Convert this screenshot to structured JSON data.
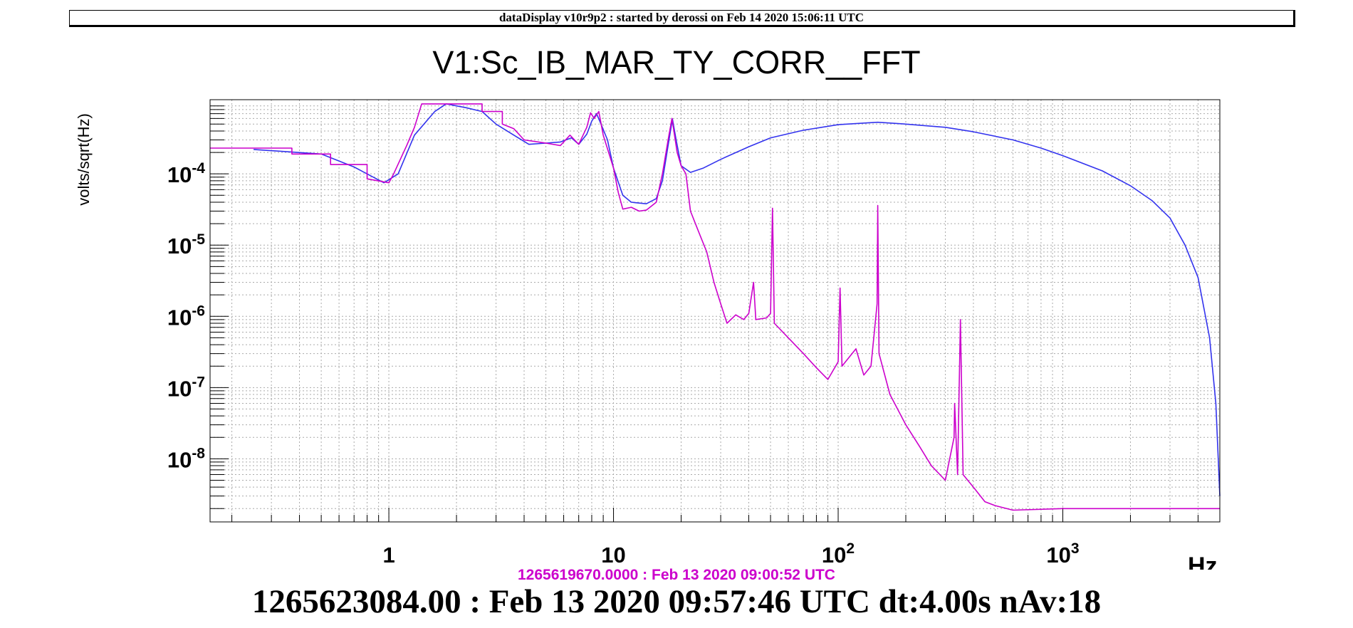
{
  "banner": "dataDisplay v10r9p2 : started by derossi on Feb 14 2020 15:06:11 UTC",
  "chart_data": {
    "type": "line",
    "title": "V1:Sc_IB_MAR_TY_CORR__FFT",
    "xlabel": "Hz",
    "ylabel": "volts/sqrt(Hz)",
    "xscale": "log",
    "yscale": "log",
    "xlim": [
      0.16,
      5000
    ],
    "ylim": [
      1.3e-09,
      0.0011
    ],
    "grid": true,
    "x_tick_labels": [
      {
        "value": 1,
        "base": "1",
        "exp": ""
      },
      {
        "value": 10,
        "base": "10",
        "exp": ""
      },
      {
        "value": 100,
        "base": "10",
        "exp": "2"
      },
      {
        "value": 1000,
        "base": "10",
        "exp": "3"
      }
    ],
    "y_tick_labels": [
      {
        "value": 0.0001,
        "base": "10",
        "exp": "-4"
      },
      {
        "value": 1e-05,
        "base": "10",
        "exp": "-5"
      },
      {
        "value": 1e-06,
        "base": "10",
        "exp": "-6"
      },
      {
        "value": 1e-07,
        "base": "10",
        "exp": "-7"
      },
      {
        "value": 1e-08,
        "base": "10",
        "exp": "-8"
      }
    ],
    "series": [
      {
        "color": "#3333ee",
        "points": [
          [
            0.25,
            0.00022
          ],
          [
            0.5,
            0.00019
          ],
          [
            0.7,
            0.000125
          ],
          [
            0.95,
            7.5e-05
          ],
          [
            1.1,
            0.0001
          ],
          [
            1.3,
            0.00035
          ],
          [
            1.6,
            0.00075
          ],
          [
            1.8,
            0.00096
          ],
          [
            2.2,
            0.00085
          ],
          [
            2.6,
            0.00075
          ],
          [
            3.0,
            0.0005
          ],
          [
            3.6,
            0.00035
          ],
          [
            4.2,
            0.00026
          ],
          [
            5.0,
            0.00027
          ],
          [
            5.8,
            0.00028
          ],
          [
            6.5,
            0.00032
          ],
          [
            7.0,
            0.00026
          ],
          [
            7.6,
            0.00036
          ],
          [
            8.0,
            0.00055
          ],
          [
            8.4,
            0.0007
          ],
          [
            8.8,
            0.0005
          ],
          [
            9.4,
            0.0003
          ],
          [
            10,
            0.00012
          ],
          [
            11,
            5e-05
          ],
          [
            12,
            4e-05
          ],
          [
            14,
            3.8e-05
          ],
          [
            15.5,
            4.5e-05
          ],
          [
            16.5,
            8e-05
          ],
          [
            17.5,
            0.00025
          ],
          [
            18.3,
            0.00059
          ],
          [
            19,
            0.0003
          ],
          [
            20,
            0.00013
          ],
          [
            22,
            0.000105
          ],
          [
            25,
            0.00012
          ],
          [
            30,
            0.00016
          ],
          [
            40,
            0.00024
          ],
          [
            50,
            0.00032
          ],
          [
            70,
            0.00041
          ],
          [
            100,
            0.00049
          ],
          [
            150,
            0.00053
          ],
          [
            200,
            0.0005
          ],
          [
            300,
            0.00045
          ],
          [
            400,
            0.00039
          ],
          [
            600,
            0.0003
          ],
          [
            800,
            0.00023
          ],
          [
            1000,
            0.00018
          ],
          [
            1500,
            0.00011
          ],
          [
            2000,
            6.8e-05
          ],
          [
            2500,
            4.2e-05
          ],
          [
            3000,
            2.4e-05
          ],
          [
            3500,
            1e-05
          ],
          [
            4000,
            3.5e-06
          ],
          [
            4500,
            5e-07
          ],
          [
            4800,
            6e-08
          ],
          [
            5000,
            3e-09
          ]
        ]
      },
      {
        "color": "#cc00cc",
        "points": [
          [
            0.16,
            0.00023
          ],
          [
            0.37,
            0.00023
          ],
          [
            0.37,
            0.00019
          ],
          [
            0.55,
            0.00019
          ],
          [
            0.55,
            0.000135
          ],
          [
            0.8,
            0.000135
          ],
          [
            0.8,
            8.5e-05
          ],
          [
            1.0,
            7.5e-05
          ],
          [
            1.05,
            0.0001
          ],
          [
            1.2,
            0.00025
          ],
          [
            1.3,
            0.00045
          ],
          [
            1.4,
            0.00096
          ],
          [
            2.6,
            0.00096
          ],
          [
            2.6,
            0.00075
          ],
          [
            3.2,
            0.00075
          ],
          [
            3.2,
            0.0005
          ],
          [
            3.6,
            0.00043
          ],
          [
            4.0,
            0.0003
          ],
          [
            5.0,
            0.00027
          ],
          [
            5.8,
            0.00025
          ],
          [
            6.4,
            0.00035
          ],
          [
            7.0,
            0.00026
          ],
          [
            7.6,
            0.00045
          ],
          [
            7.9,
            0.00072
          ],
          [
            8.2,
            0.0006
          ],
          [
            8.6,
            0.00075
          ],
          [
            9.0,
            0.00035
          ],
          [
            10,
            0.00012
          ],
          [
            10.5,
            5.5e-05
          ],
          [
            11,
            3.2e-05
          ],
          [
            12,
            3.4e-05
          ],
          [
            13,
            3e-05
          ],
          [
            14,
            3.1e-05
          ],
          [
            15.5,
            4e-05
          ],
          [
            16.5,
            0.0001
          ],
          [
            17.5,
            0.0003
          ],
          [
            18.2,
            0.0006
          ],
          [
            19.2,
            0.0002
          ],
          [
            20,
            0.00013
          ],
          [
            21,
            0.0001
          ],
          [
            22,
            3e-05
          ],
          [
            24,
            1.5e-05
          ],
          [
            26,
            8e-06
          ],
          [
            28,
            3e-06
          ],
          [
            30,
            1.5e-06
          ],
          [
            32,
            8e-07
          ],
          [
            35,
            1.05e-06
          ],
          [
            38,
            9e-07
          ],
          [
            40,
            1.1e-06
          ],
          [
            42,
            3e-06
          ],
          [
            43,
            9e-07
          ],
          [
            48,
            9.5e-07
          ],
          [
            50,
            1.1e-06
          ],
          [
            51,
            3.3e-05
          ],
          [
            52,
            8e-07
          ],
          [
            60,
            5e-07
          ],
          [
            70,
            3e-07
          ],
          [
            80,
            1.9e-07
          ],
          [
            90,
            1.3e-07
          ],
          [
            100,
            2.3e-07
          ],
          [
            102,
            2.5e-06
          ],
          [
            104,
            2e-07
          ],
          [
            120,
            3.5e-07
          ],
          [
            130,
            1.5e-07
          ],
          [
            140,
            2e-07
          ],
          [
            149,
            1.5e-06
          ],
          [
            150,
            3.6e-05
          ],
          [
            152,
            3e-07
          ],
          [
            170,
            8e-08
          ],
          [
            200,
            3e-08
          ],
          [
            230,
            1.5e-08
          ],
          [
            260,
            8e-09
          ],
          [
            300,
            5e-09
          ],
          [
            328,
            2e-08
          ],
          [
            330,
            6e-08
          ],
          [
            340,
            6e-09
          ],
          [
            350,
            9e-07
          ],
          [
            360,
            6e-09
          ],
          [
            400,
            4e-09
          ],
          [
            450,
            2.5e-09
          ],
          [
            500,
            2.2e-09
          ],
          [
            600,
            1.9e-09
          ],
          [
            1000,
            2e-09
          ],
          [
            2000,
            2e-09
          ],
          [
            5000,
            2e-09
          ]
        ]
      }
    ]
  },
  "footer": {
    "magenta_timestamp": "1265619670.0000 : Feb 13 2020 09:00:52 UTC",
    "main_timestamp": "1265623084.00 : Feb 13 2020 09:57:46 UTC dt:4.00s nAv:18"
  }
}
